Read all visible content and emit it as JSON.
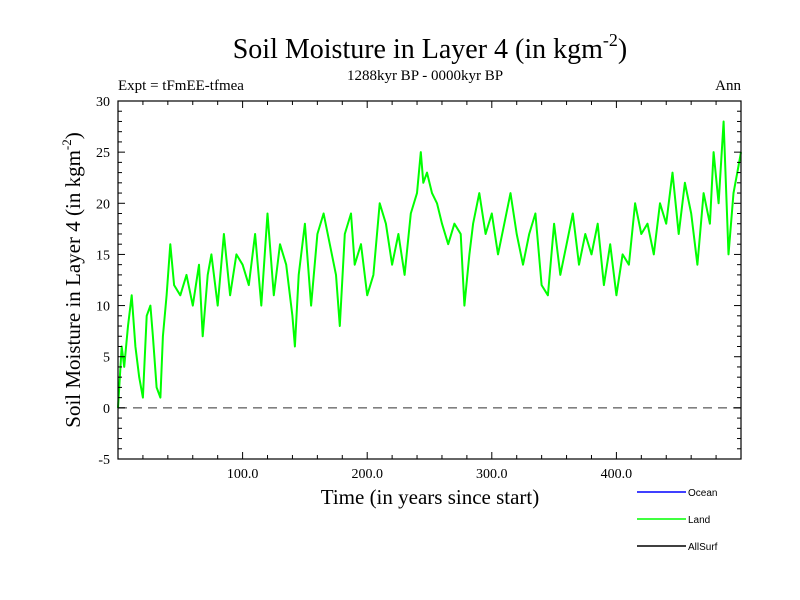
{
  "chart_data": {
    "type": "line",
    "title_main": "Soil Moisture in Layer 4 (in kgm",
    "title_sup": "-2",
    "title_close": ")",
    "subtitle": "1288kyr BP - 0000kyr BP",
    "experiment_label": "Expt = tFmEE-tfmea",
    "period_label": "Ann",
    "xlabel": "Time (in years since start)",
    "ylabel_main": "Soil Moisture in Layer 4 (in kgm",
    "ylabel_sup": "-2",
    "ylabel_close": ")",
    "xlim": [
      0,
      500
    ],
    "ylim": [
      -5,
      30
    ],
    "x_ticks": [
      100,
      200,
      300,
      400
    ],
    "x_tick_labels": [
      "100.0",
      "200.0",
      "300.0",
      "400.0"
    ],
    "y_ticks": [
      -5,
      0,
      5,
      10,
      15,
      20,
      25,
      30
    ],
    "y_tick_labels": [
      "-5",
      "0",
      "5",
      "10",
      "15",
      "20",
      "25",
      "30"
    ],
    "zero_line": 0,
    "series": [
      {
        "name": "Ocean",
        "color": "#0000ff",
        "values": []
      },
      {
        "name": "Land",
        "color": "#00ff00",
        "x": [
          0,
          3,
          5,
          8,
          11,
          14,
          17,
          20,
          23,
          26,
          28,
          31,
          34,
          36,
          39,
          42,
          45,
          50,
          55,
          60,
          65,
          68,
          72,
          75,
          80,
          85,
          90,
          95,
          100,
          105,
          110,
          115,
          120,
          125,
          130,
          135,
          140,
          142,
          145,
          150,
          155,
          160,
          165,
          170,
          175,
          178,
          182,
          187,
          190,
          195,
          200,
          205,
          210,
          215,
          220,
          225,
          230,
          235,
          240,
          243,
          245,
          248,
          252,
          256,
          260,
          265,
          270,
          275,
          278,
          282,
          285,
          290,
          295,
          300,
          305,
          310,
          315,
          320,
          325,
          330,
          335,
          340,
          345,
          350,
          355,
          360,
          365,
          370,
          375,
          380,
          385,
          390,
          395,
          400,
          405,
          410,
          415,
          420,
          425,
          430,
          435,
          440,
          445,
          450,
          455,
          460,
          465,
          470,
          475,
          478,
          482,
          486,
          490,
          494,
          497,
          500
        ],
        "values": [
          0,
          6,
          4,
          8,
          11,
          6,
          3,
          1,
          9,
          10,
          7,
          2,
          1,
          7,
          11,
          16,
          12,
          11,
          13,
          10,
          14,
          7,
          13,
          15,
          10,
          17,
          11,
          15,
          14,
          12,
          17,
          10,
          19,
          11,
          16,
          14,
          9,
          6,
          13,
          18,
          10,
          17,
          19,
          16,
          13,
          8,
          17,
          19,
          14,
          16,
          11,
          13,
          20,
          18,
          14,
          17,
          13,
          19,
          21,
          25,
          22,
          23,
          21,
          20,
          18,
          16,
          18,
          17,
          10,
          15,
          18,
          21,
          17,
          19,
          15,
          18,
          21,
          17,
          14,
          17,
          19,
          12,
          11,
          18,
          13,
          16,
          19,
          14,
          17,
          15,
          18,
          12,
          16,
          11,
          15,
          14,
          20,
          17,
          18,
          15,
          20,
          18,
          23,
          17,
          22,
          19,
          14,
          21,
          18,
          25,
          20,
          28,
          15,
          21,
          23,
          25
        ]
      },
      {
        "name": "AllSurf",
        "color": "#000000",
        "values": []
      }
    ],
    "legend_placement": "bottom-right"
  }
}
